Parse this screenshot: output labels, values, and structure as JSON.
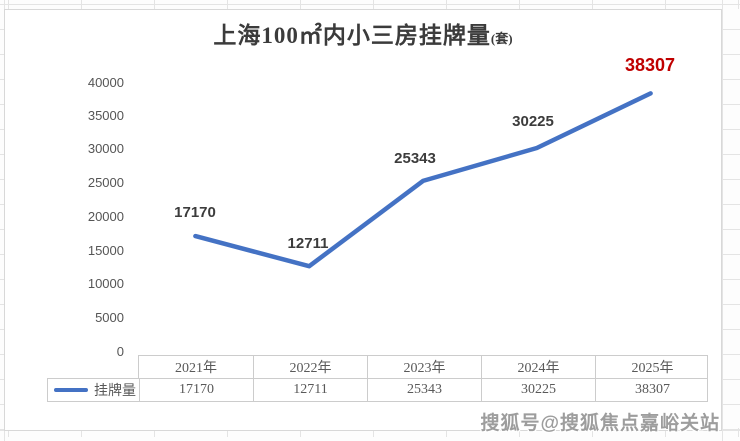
{
  "chart_data": {
    "type": "line",
    "title": "上海100㎡内小三房挂牌量",
    "title_unit": "(套)",
    "categories": [
      "2021年",
      "2022年",
      "2023年",
      "2024年",
      "2025年"
    ],
    "series": [
      {
        "name": "挂牌量",
        "values": [
          17170,
          12711,
          25343,
          30225,
          38307
        ]
      }
    ],
    "yticks": [
      0,
      5000,
      10000,
      15000,
      20000,
      25000,
      30000,
      35000,
      40000
    ],
    "ylim": [
      0,
      40000
    ],
    "grid": false,
    "legend_position": "bottom-table",
    "line_color": "#4472c4",
    "label_color": "#3c3c3c",
    "highlight": {
      "index": 4,
      "value": 38307,
      "color": "#c00000"
    }
  },
  "watermark": {
    "text": "搜狐号@搜狐焦点嘉峪关站"
  }
}
